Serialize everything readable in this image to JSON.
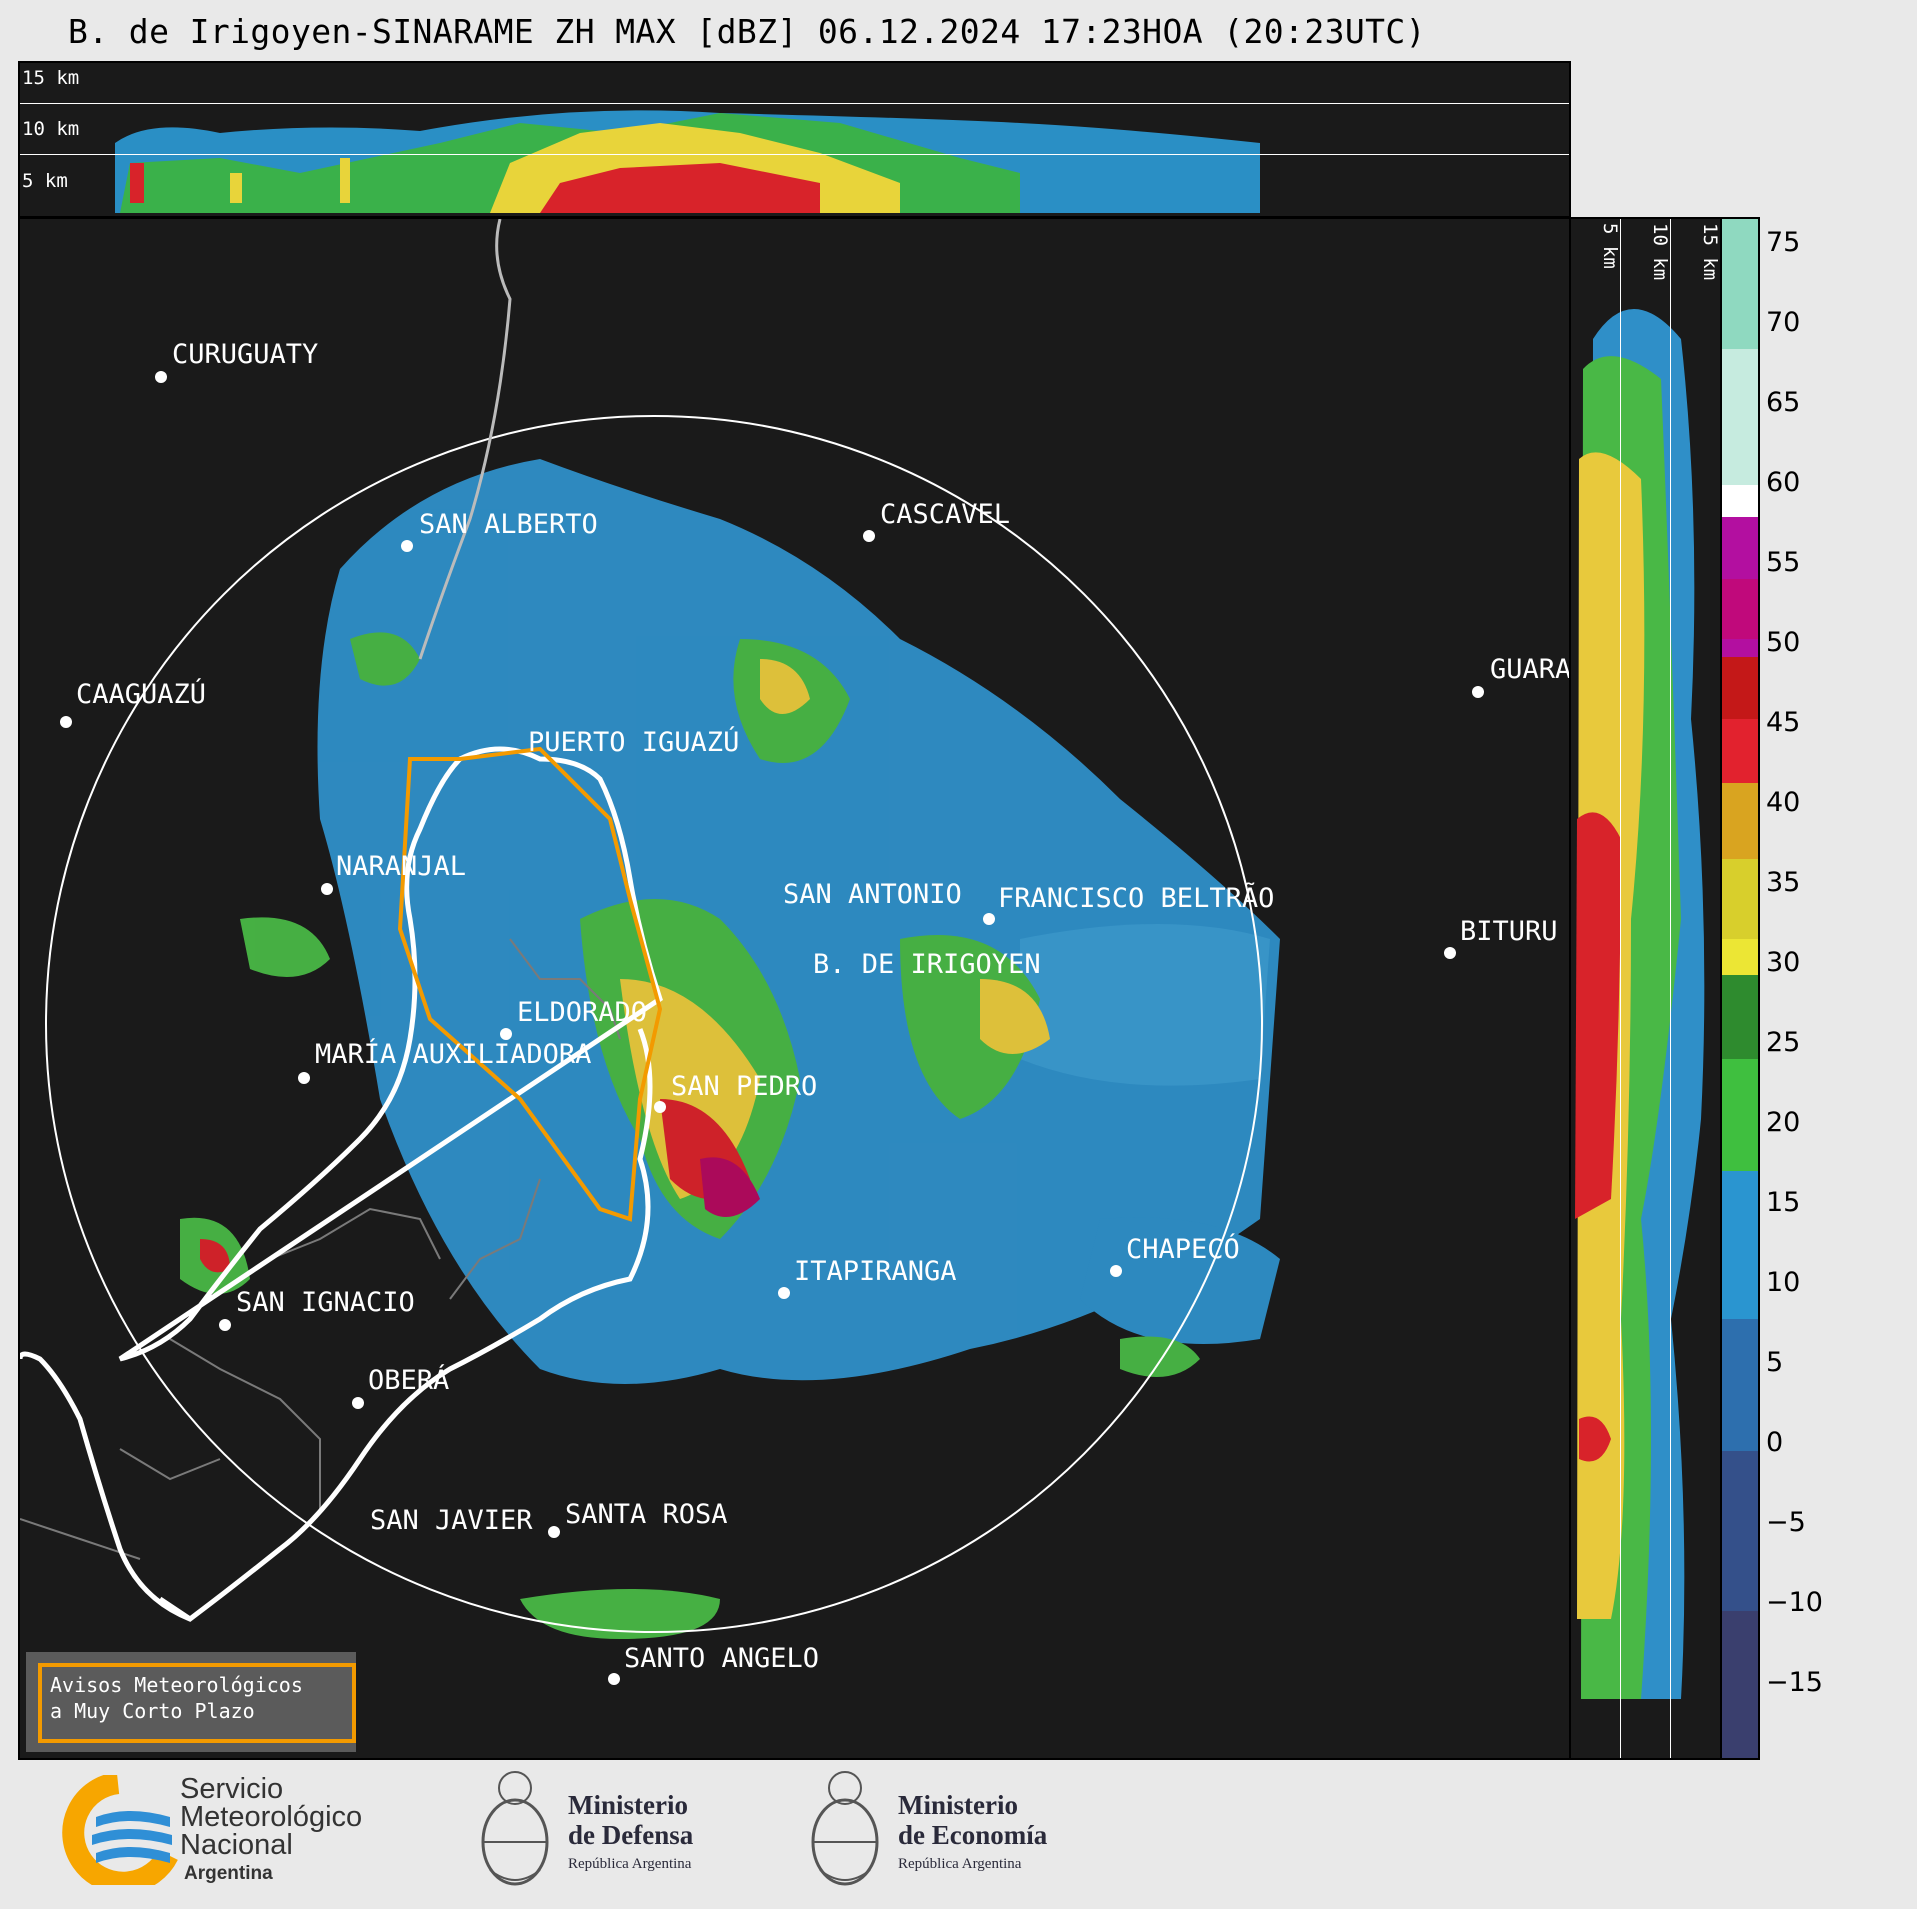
{
  "title": "B. de Irigoyen-SINARAME ZH MAX [dBZ] 06.12.2024 17:23HOA (20:23UTC)",
  "top_panel": {
    "height_labels": [
      "15 km",
      "10 km",
      "5 km"
    ]
  },
  "side_panel": {
    "height_labels": [
      "5 km",
      "10 km",
      "15 km"
    ]
  },
  "colorbar": {
    "unit": "dBZ",
    "range": [
      -20,
      77
    ],
    "ticks": [
      "75",
      "70",
      "65",
      "60",
      "55",
      "50",
      "45",
      "40",
      "35",
      "30",
      "25",
      "20",
      "15",
      "10",
      "5",
      "0",
      "−5",
      "−10",
      "−15"
    ],
    "tick_values": [
      75,
      70,
      65,
      60,
      55,
      50,
      45,
      40,
      35,
      30,
      25,
      20,
      15,
      10,
      5,
      0,
      -5,
      -10,
      -15
    ]
  },
  "cities": [
    {
      "name": "CURUGUATY"
    },
    {
      "name": "SAN ALBERTO"
    },
    {
      "name": "CASCAVEL"
    },
    {
      "name": "CAAGUAZÚ"
    },
    {
      "name": "GUARA"
    },
    {
      "name": "PUERTO IGUAZÚ"
    },
    {
      "name": "NARANJAL"
    },
    {
      "name": "SAN ANTONIO"
    },
    {
      "name": "FRANCISCO BELTRÃO"
    },
    {
      "name": "B. DE IRIGOYEN"
    },
    {
      "name": "BITURU"
    },
    {
      "name": "ELDORADO"
    },
    {
      "name": "MARÍA AUXILIADORA"
    },
    {
      "name": "SAN PEDRO"
    },
    {
      "name": "CHAPECÓ"
    },
    {
      "name": "ITAPIRANGA"
    },
    {
      "name": "SAN IGNACIO"
    },
    {
      "name": "OBERÁ"
    },
    {
      "name": "SAN JAVIER"
    },
    {
      "name": "SANTA ROSA"
    },
    {
      "name": "SANTO ANGELO"
    }
  ],
  "alert_box": {
    "line1": "Avisos Meteorológicos",
    "line2": "a Muy Corto Plazo"
  },
  "logos": {
    "smn": {
      "line1": "Servicio",
      "line2": "Meteorológico",
      "line3": "Nacional",
      "line4": "Argentina"
    },
    "defensa": {
      "line1": "Ministerio",
      "line2": "de Defensa",
      "line3": "República Argentina"
    },
    "economia": {
      "line1": "Ministerio",
      "line2": "de Economía",
      "line3": "República Argentina"
    }
  },
  "colors": {
    "background": "#e9e9e9",
    "panel": "#1a1a1a",
    "range_ring": "#ffffff",
    "warning_polygon": "#f39a00",
    "smn_blue": "#2f8fd6",
    "smn_orange": "#f7a600"
  }
}
